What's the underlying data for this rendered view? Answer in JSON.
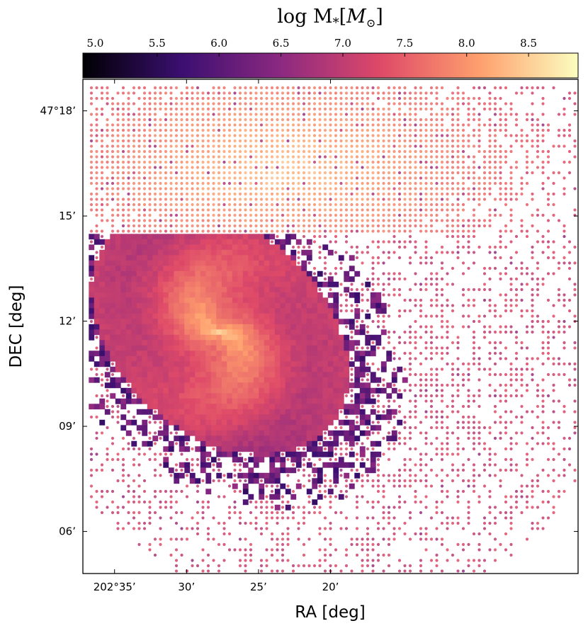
{
  "chart_data": {
    "type": "heatmap",
    "title": "",
    "colorbar": {
      "label": "log M",
      "label_sub": "*",
      "label_unit_open": "[",
      "label_unit": "M",
      "label_unit_sub": "⊙",
      "label_unit_close": "]",
      "range": [
        4.9,
        8.9
      ],
      "ticks": [
        5.0,
        5.5,
        6.0,
        6.5,
        7.0,
        7.5,
        8.0,
        8.5
      ],
      "tick_labels": [
        "5.0",
        "5.5",
        "6.0",
        "6.5",
        "7.0",
        "7.5",
        "8.0",
        "8.5"
      ],
      "colormap": "magma",
      "colormap_stops": [
        "#000004",
        "#3b0f70",
        "#8c2981",
        "#de4968",
        "#fe9f6d",
        "#fcfdbf"
      ],
      "position": "top"
    },
    "xlabel": "RA [deg]",
    "ylabel": "DEC [deg]",
    "x_axis": {
      "inverted": true,
      "range_arcmin": [
        217.2,
        182.8
      ],
      "ticks_arcmin": [
        215,
        210,
        205,
        200
      ],
      "tick_labels": [
        "202°35’",
        "30’",
        "25’",
        "20’"
      ]
    },
    "y_axis": {
      "range_arcmin": [
        2824.8,
        2838.9
      ],
      "ticks_arcmin": [
        2838,
        2835,
        2832,
        2829,
        2826
      ],
      "tick_labels": [
        "47°18’",
        "15’",
        "12’",
        "09’",
        "06’"
      ]
    },
    "center": {
      "ra_arcmin": 207.7,
      "dec_arcmin": 2831.7
    },
    "peak_log_mass": 8.6,
    "outer_dot_log_mass": 7.4,
    "upper_region_log_mass": 8.5,
    "upper_region_boundary_dec_arcmin": 2834.5,
    "grid": false,
    "legend": "none"
  }
}
